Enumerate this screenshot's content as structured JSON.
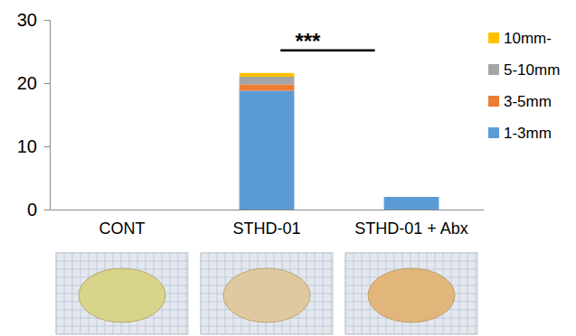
{
  "chart_data": {
    "type": "bar",
    "stacked": true,
    "legend": "right",
    "categories": [
      "CONT",
      "STHD-01",
      "STHD-01 + Abx"
    ],
    "series": [
      {
        "name": "1-3mm",
        "color": "#5b9bd5",
        "values": [
          0,
          18.8,
          2.0
        ]
      },
      {
        "name": "3-5mm",
        "color": "#ed7d31",
        "values": [
          0,
          1.0,
          0
        ]
      },
      {
        "name": "5-10mm",
        "color": "#a5a5a5",
        "values": [
          0,
          1.2,
          0
        ]
      },
      {
        "name": "10mm-",
        "color": "#ffc000",
        "values": [
          0,
          0.6,
          0
        ]
      }
    ],
    "ylim": [
      0,
      30
    ],
    "yticks": [
      0,
      10,
      20,
      30
    ],
    "annotations": [
      {
        "text": "***"
      }
    ]
  }
}
